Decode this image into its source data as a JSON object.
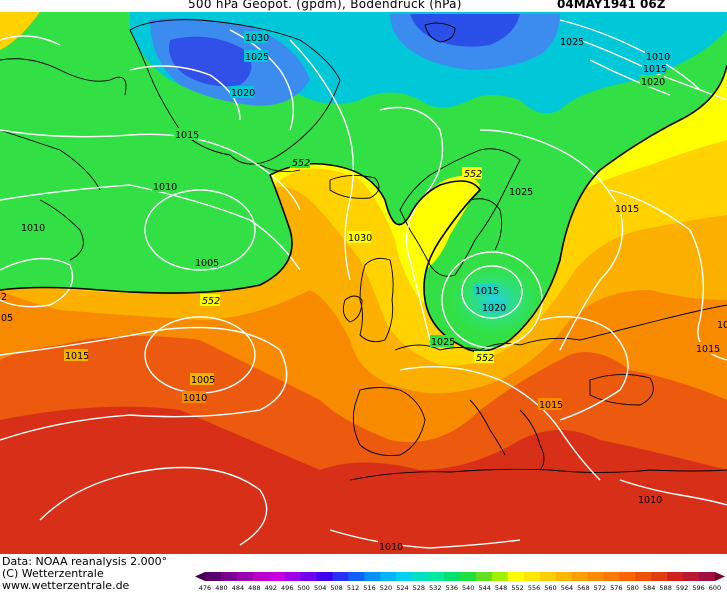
{
  "header": {
    "title": "500 hPa Geopot. (gpdm), Bodendruck (hPa)",
    "timestamp": "04MAY1941 06Z"
  },
  "footer": {
    "data_source": "Data: NOAA reanalysis 2.000°",
    "copyright": "(C) Wetterzentrale",
    "website": "www.wetterzentrale.de"
  },
  "map": {
    "isobar_labels": [
      "1030",
      "1025",
      "1020",
      "1015",
      "1010",
      "1010",
      "1005",
      "1005",
      "1010",
      "1015",
      "1030",
      "1025",
      "1015",
      "1020",
      "1025",
      "1025",
      "1010",
      "1015",
      "1020",
      "1015",
      "1015",
      "1015",
      "1010",
      "1010",
      "1015",
      "2",
      "05"
    ],
    "geopotential_contour_labels": [
      "552",
      "552",
      "552",
      "552"
    ]
  },
  "colorbar": {
    "ticks": [
      "476",
      "480",
      "484",
      "488",
      "492",
      "496",
      "500",
      "504",
      "508",
      "512",
      "516",
      "520",
      "524",
      "528",
      "532",
      "536",
      "540",
      "544",
      "548",
      "552",
      "556",
      "560",
      "564",
      "568",
      "572",
      "576",
      "580",
      "584",
      "588",
      "592",
      "596",
      "600"
    ],
    "colors": [
      "#5a006e",
      "#7a0090",
      "#9a00b0",
      "#b800c8",
      "#c800e0",
      "#a000e8",
      "#7000f0",
      "#4000f0",
      "#2a30ff",
      "#1060ff",
      "#0090ff",
      "#00b4ff",
      "#00d0f0",
      "#00e0c0",
      "#00e8a0",
      "#00e070",
      "#20e040",
      "#60e020",
      "#a0f000",
      "#ffff00",
      "#ffe600",
      "#ffd000",
      "#ffb800",
      "#ffa000",
      "#ff8c00",
      "#ff7800",
      "#ff6400",
      "#f05000",
      "#e03c10",
      "#d02020",
      "#b81830",
      "#a01040"
    ]
  }
}
